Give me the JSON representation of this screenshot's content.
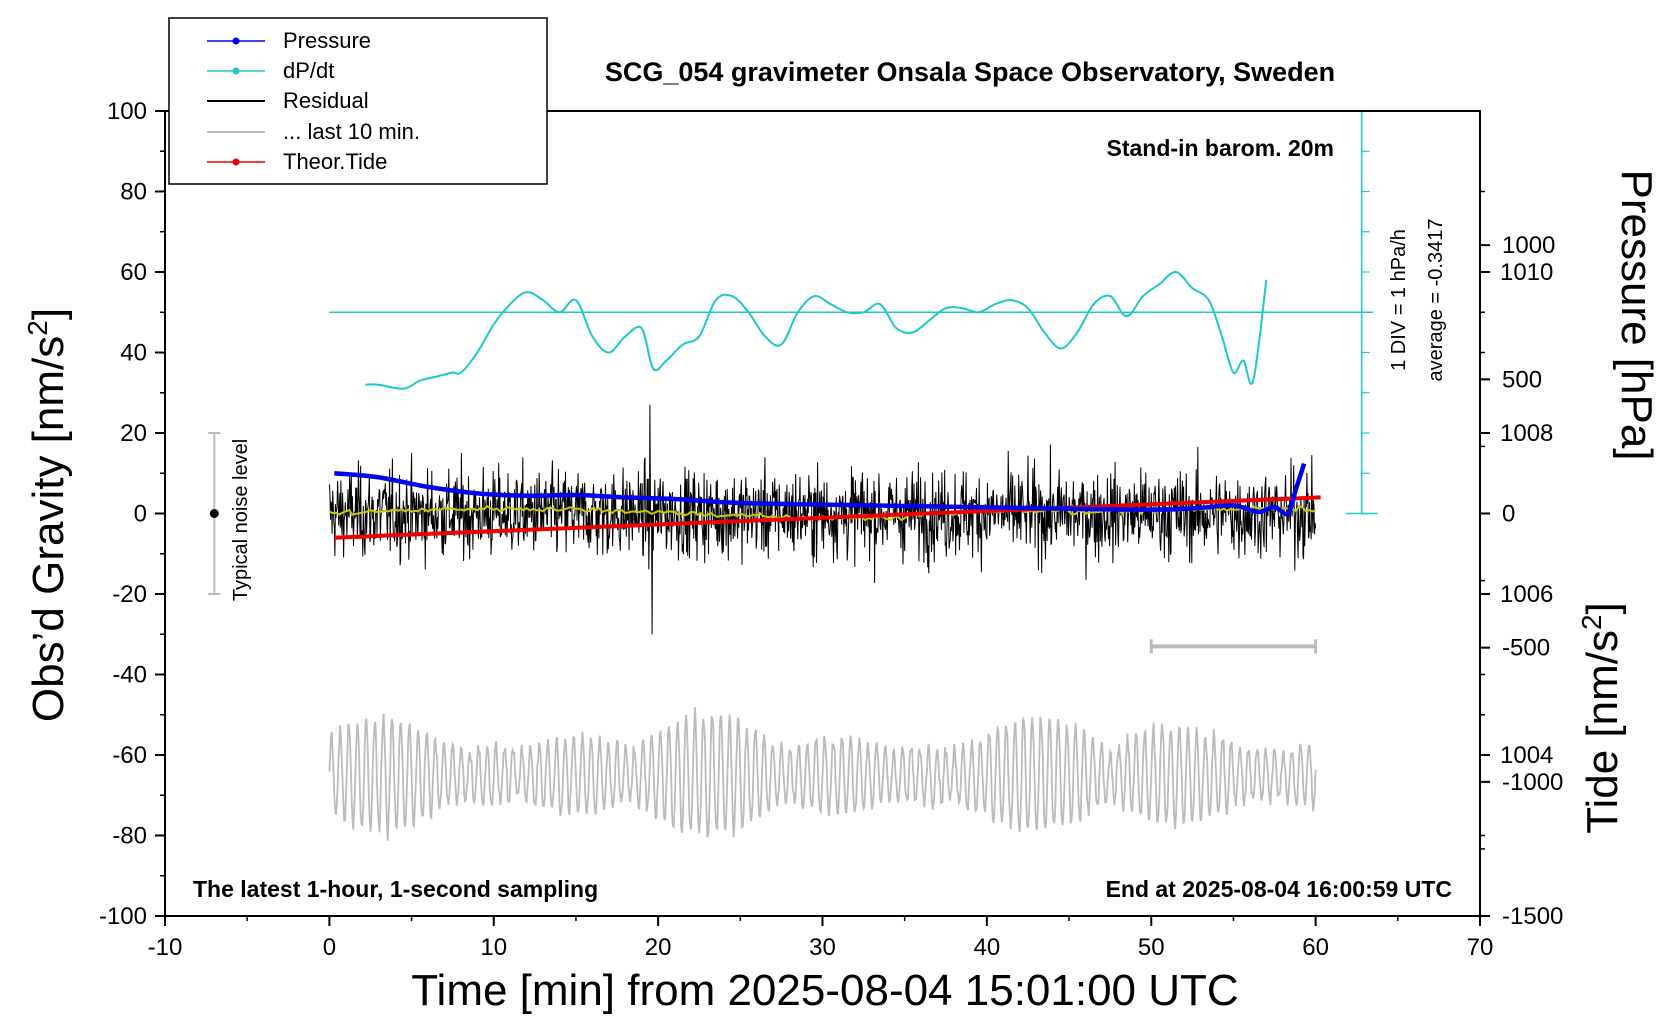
{
  "chart_data": {
    "type": "line",
    "title": "SCG_054 gravimeter Onsala Space Observatory, Sweden",
    "xlabel": "Time [min] from 2025-08-04 15:01:00 UTC",
    "ylabel_left": "Obs’d Gravity [nm/s",
    "ylabel_left_sup": "2",
    "ylabel_left_end": "]",
    "ylabel_right_top": "Pressure [hPa]",
    "ylabel_right_bottom": "Tide [nm/s",
    "ylabel_right_bottom_sup": "2",
    "ylabel_right_bottom_end": "]",
    "xlim": [
      -10,
      70
    ],
    "ylim": [
      -100,
      100
    ],
    "xticks": [
      -10,
      0,
      10,
      20,
      30,
      40,
      50,
      60,
      70
    ],
    "yticks": [
      -100,
      -80,
      -60,
      -40,
      -20,
      0,
      20,
      40,
      60,
      80,
      100
    ],
    "pressure_axis": {
      "ticks": [
        1004,
        1006,
        1008,
        1010
      ],
      "min": 1002,
      "max": 1012
    },
    "tide_axis": {
      "ticks": [
        -1500,
        -1000,
        -500,
        0,
        500,
        1000
      ],
      "min": -1500,
      "max": 1500
    },
    "annotations": {
      "barometer": "Stand-in barom. 20m",
      "div": "1 DIV = 1 hPa/h",
      "average": "average = -0.3417",
      "noise": "Typical noise level",
      "sampling": "The latest 1-hour, 1-second sampling",
      "end": "End at 2025-08-04 16:00:59 UTC"
    },
    "legend": {
      "placement": "top-left",
      "entries": [
        "Pressure",
        "dP/dt",
        "Residual",
        "... last 10 min.",
        "Theor.Tide"
      ]
    },
    "colors": {
      "pressure": "#0000ee",
      "dpdt": "#1ec8c8",
      "residual": "#000000",
      "smooth": "#c8c800",
      "last10": "#bbbbbb",
      "tide": "#ee0000"
    },
    "series": [
      {
        "name": "Pressure",
        "axis": "pressure_hPa",
        "x": [
          0.3,
          3,
          6,
          9,
          12,
          15,
          18,
          21,
          24,
          27,
          30,
          33,
          36,
          39,
          42,
          45,
          48,
          51,
          53,
          55,
          56.5,
          57.5,
          58.3,
          58.8,
          59.3
        ],
        "y": [
          1007.5,
          1007.45,
          1007.33,
          1007.25,
          1007.22,
          1007.23,
          1007.2,
          1007.18,
          1007.14,
          1007.12,
          1007.11,
          1007.1,
          1007.09,
          1007.08,
          1007.07,
          1007.06,
          1007.05,
          1007.05,
          1007.07,
          1007.1,
          1007.02,
          1007.08,
          1007.0,
          1007.3,
          1007.62
        ]
      },
      {
        "name": "dP/dt",
        "axis": "gravity_nm_s2",
        "x": [
          2.2,
          3,
          4.5,
          5.5,
          6.5,
          7.5,
          8,
          9,
          10,
          11,
          12,
          13,
          14,
          15,
          16,
          17,
          18,
          19,
          19.7,
          20.5,
          21.5,
          22.5,
          23.5,
          24.5,
          25.5,
          26.5,
          27.5,
          28.5,
          29.5,
          30.5,
          31.5,
          32.5,
          33.5,
          34.5,
          35.5,
          36.5,
          37.5,
          38.5,
          39.5,
          40.5,
          41.5,
          42.5,
          43.5,
          44.5,
          45.5,
          46.5,
          47.5,
          48.5,
          49.5,
          50.5,
          51.5,
          52.5,
          53.5,
          54.3,
          55,
          55.6,
          56.2,
          57
        ],
        "y": [
          32,
          32,
          31,
          33,
          34,
          35,
          35,
          40,
          47,
          52,
          55,
          53,
          50,
          53,
          44,
          40,
          44,
          46,
          36,
          38,
          42,
          44,
          53,
          54,
          50,
          44,
          42,
          50,
          54,
          52,
          50,
          50,
          52,
          46,
          45,
          48,
          51,
          51,
          50,
          52,
          53,
          51,
          45,
          41,
          45,
          52,
          54,
          49,
          54,
          57,
          60,
          56,
          53,
          44,
          35,
          38,
          33,
          58
        ]
      },
      {
        "name": "Residual",
        "axis": "gravity_nm_s2",
        "x_range": [
          0,
          60
        ],
        "mean": 0,
        "amplitude": 20,
        "min": -30,
        "max": 27
      },
      {
        "name": "... last 10 min.",
        "axis": "gravity_nm_s2",
        "x_range": [
          0,
          60
        ],
        "center": -65,
        "min": -83,
        "max": -38
      },
      {
        "name": "Theor.Tide",
        "axis": "tide_nm_s2",
        "x": [
          0.3,
          60.3
        ],
        "y": [
          -90,
          60
        ]
      }
    ]
  }
}
